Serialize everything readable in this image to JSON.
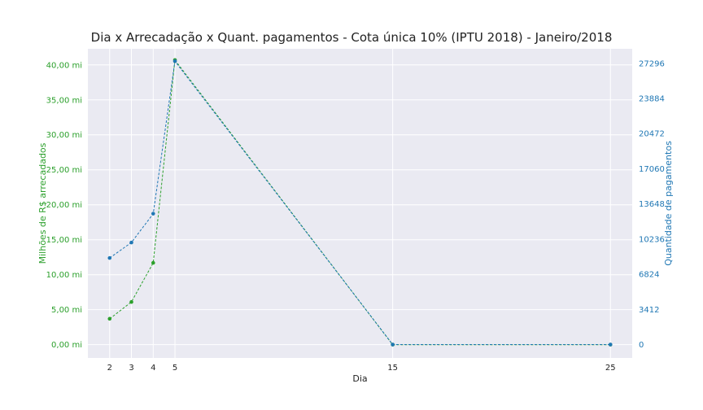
{
  "chart_data": {
    "type": "line",
    "title": "Dia x Arrecadação x Quant. pagamentos - Cota única 10% (IPTU 2018) - Janeiro/2018",
    "xlabel": "Dia",
    "ylabel_left": "Milhões de R$ arrecadados",
    "ylabel_right": "Quantidade de pagamentos",
    "x": [
      2,
      3,
      4,
      5,
      15,
      25
    ],
    "x_tick_labels": [
      "2",
      "3",
      "4",
      "5",
      "15",
      "25"
    ],
    "xlim": [
      1,
      26
    ],
    "series": [
      {
        "axis": "left",
        "color": "#2ca02c",
        "values": [
          3.7,
          6.1,
          11.7,
          40.7,
          0,
          0
        ]
      },
      {
        "axis": "right",
        "color": "#1f77b4",
        "values": [
          8400,
          9900,
          12700,
          27500,
          0,
          0
        ]
      }
    ],
    "ylim_left": [
      -1.9,
      42.3
    ],
    "ylim_right": [
      -1300,
      28700
    ],
    "y_left_ticks": [
      0,
      5,
      10,
      15,
      20,
      25,
      30,
      35,
      40
    ],
    "y_left_tick_labels": [
      "0,00 mi",
      "5,00 mi",
      "10,00 mi",
      "15,00 mi",
      "20,00 mi",
      "25,00 mi",
      "30,00 mi",
      "35,00 mi",
      "40,00 mi"
    ],
    "y_right_ticks": [
      0,
      3412,
      6824,
      10236,
      13648,
      17060,
      20472,
      23884,
      27296
    ],
    "y_right_tick_labels": [
      "0",
      "3412",
      "6824",
      "10236",
      "13648",
      "17060",
      "20472",
      "23884",
      "27296"
    ],
    "left_axis_color": "#2ca02c",
    "right_axis_color": "#1f77b4",
    "background_color": "#eaeaf2",
    "grid": true
  }
}
